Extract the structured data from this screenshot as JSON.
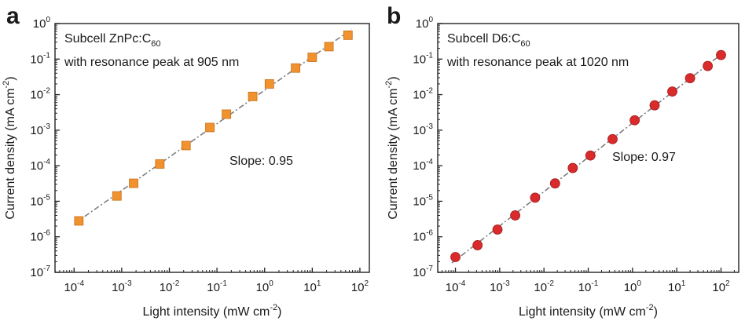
{
  "chart_data": [
    {
      "panel": "a",
      "type": "scatter",
      "xscale": "log",
      "yscale": "log",
      "xlabel": "Light intensity (mW cm",
      "xlabel_sup": "-2",
      "xlabel_close": ")",
      "ylabel": "Current density (mA cm",
      "ylabel_sup": "-2",
      "ylabel_close": ")",
      "xlim": [
        3.98e-05,
        158
      ],
      "ylim": [
        1e-07,
        1
      ],
      "xticks": [
        -4,
        -3,
        -2,
        -1,
        0,
        1,
        2
      ],
      "yticks": [
        0,
        -1,
        -2,
        -3,
        -4,
        -5,
        -6,
        -7
      ],
      "tick_base": "10",
      "annotation_line1": "Subcell ZnPc:C",
      "annotation_line1_sub": "60",
      "annotation_line2": "with resonance peak at 905 nm",
      "slope_label": "Slope: 0.95",
      "marker": "square",
      "marker_color": "#f0922e",
      "fit_line_color": "#7f7f7f",
      "series": [
        {
          "x": [
            0.000126,
            0.000794,
            0.00178,
            0.00631,
            0.0224,
            0.0708,
            0.158,
            0.562,
            1.26,
            4.47,
            10,
            22.4,
            56.2
          ],
          "y": [
            2.8e-06,
            1.41e-05,
            3.2e-05,
            0.000112,
            0.00037,
            0.00119,
            0.00282,
            0.0089,
            0.02,
            0.056,
            0.112,
            0.224,
            0.47
          ]
        }
      ]
    },
    {
      "panel": "b",
      "type": "scatter",
      "xscale": "log",
      "yscale": "log",
      "xlabel": "Light intensity (mW cm",
      "xlabel_sup": "-2",
      "xlabel_close": ")",
      "ylabel": "Current density (mA cm",
      "ylabel_sup": "-2",
      "ylabel_close": ")",
      "xlim": [
        3.98e-05,
        251
      ],
      "ylim": [
        1e-07,
        1
      ],
      "xticks": [
        -4,
        -3,
        -2,
        -1,
        0,
        1,
        2
      ],
      "yticks": [
        0,
        -1,
        -2,
        -3,
        -4,
        -5,
        -6,
        -7
      ],
      "tick_base": "10",
      "annotation_line1": "Subcell D6:C",
      "annotation_line1_sub": "60",
      "annotation_line2": "with resonance peak at 1020 nm",
      "slope_label": "Slope: 0.97",
      "marker": "circle",
      "marker_color": "#d92b2b",
      "fit_line_color": "#7f7f7f",
      "series": [
        {
          "x": [
            0.0001,
            0.000316,
            0.000891,
            0.00224,
            0.00631,
            0.0178,
            0.0447,
            0.112,
            0.355,
            1.12,
            3.16,
            7.94,
            20,
            50.1,
            100
          ],
          "y": [
            2.7e-07,
            5.8e-07,
            1.6e-06,
            4e-06,
            1.26e-05,
            3.18e-05,
            8.63e-05,
            0.000194,
            0.00056,
            0.0019,
            0.005,
            0.0122,
            0.029,
            0.064,
            0.13
          ]
        }
      ]
    }
  ]
}
